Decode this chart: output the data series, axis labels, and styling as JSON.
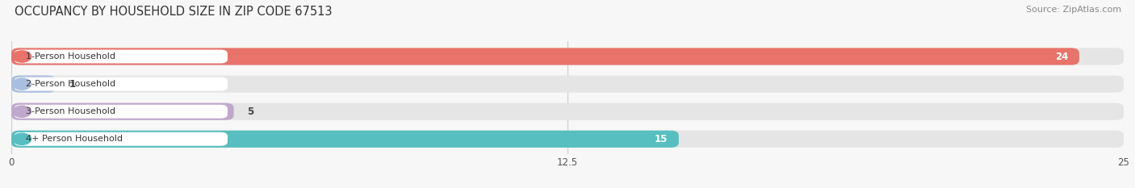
{
  "title": "OCCUPANCY BY HOUSEHOLD SIZE IN ZIP CODE 67513",
  "source": "Source: ZipAtlas.com",
  "categories": [
    "1-Person Household",
    "2-Person Household",
    "3-Person Household",
    "4+ Person Household"
  ],
  "values": [
    24,
    1,
    5,
    15
  ],
  "bar_colors": [
    "#E8736A",
    "#AABFDF",
    "#C0A8CC",
    "#57BFC0"
  ],
  "value_label_colors": [
    "white",
    "#555555",
    "#555555",
    "white"
  ],
  "xlim": [
    0,
    25
  ],
  "xticks": [
    0,
    12.5,
    25
  ],
  "background_color": "#f7f7f7",
  "bar_bg_color": "#e5e5e5",
  "title_fontsize": 10.5,
  "source_fontsize": 8,
  "bar_height": 0.62,
  "figsize": [
    14.06,
    2.33
  ],
  "dpi": 100
}
